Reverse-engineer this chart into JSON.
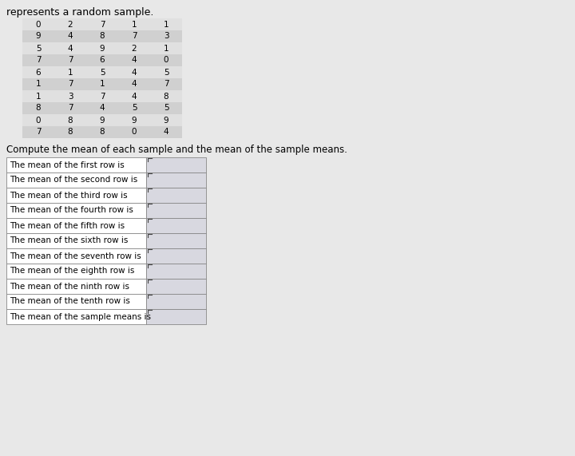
{
  "title": "represents a random sample.",
  "table_data": [
    [
      0,
      2,
      7,
      1,
      1
    ],
    [
      9,
      4,
      8,
      7,
      3
    ],
    [
      5,
      4,
      9,
      2,
      1
    ],
    [
      7,
      7,
      6,
      4,
      0
    ],
    [
      6,
      1,
      5,
      4,
      5
    ],
    [
      1,
      7,
      1,
      4,
      7
    ],
    [
      1,
      3,
      7,
      4,
      8
    ],
    [
      8,
      7,
      4,
      5,
      5
    ],
    [
      0,
      8,
      9,
      9,
      9
    ],
    [
      7,
      8,
      8,
      0,
      4
    ]
  ],
  "row_labels": [
    "The mean of the first row is",
    "The mean of the second row is",
    "The mean of the third row is",
    "The mean of the fourth row is",
    "The mean of the fifth row is",
    "The mean of the sixth row is",
    "The mean of the seventh row is",
    "The mean of the eighth row is",
    "The mean of the ninth row is",
    "The mean of the tenth row is",
    "The mean of the sample means is"
  ],
  "compute_text": "Compute the mean of each sample and the mean of the sample means.",
  "bg_color": "#e8e8e8",
  "white": "#ffffff",
  "table_alt_color": "#d0d0d0",
  "table_even_color": "#e0e0e0",
  "border_color": "#888888",
  "input_box_color": "#d8d8e0",
  "font_size_title": 9,
  "font_size_table": 7.5,
  "font_size_labels": 7.5,
  "font_size_compute": 8.5
}
